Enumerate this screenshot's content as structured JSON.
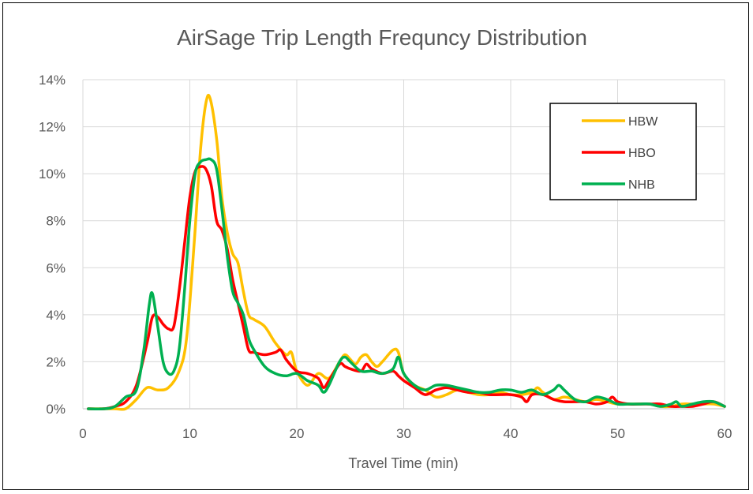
{
  "chart_data": {
    "type": "line",
    "title": "AirSage Trip Length Frequncy Distribution",
    "xlabel": "Travel Time (min)",
    "ylabel": "",
    "xlim": [
      0,
      60
    ],
    "ylim": [
      0,
      14
    ],
    "x_ticks": [
      "0",
      "10",
      "20",
      "30",
      "40",
      "50",
      "60"
    ],
    "y_ticks": [
      "0%",
      "2%",
      "4%",
      "6%",
      "8%",
      "10%",
      "12%",
      "14%"
    ],
    "grid": true,
    "legend_position": "top-right",
    "series": [
      {
        "name": "HBW",
        "color": "#FFC000",
        "points": [
          [
            0.5,
            0
          ],
          [
            2,
            0
          ],
          [
            3,
            0
          ],
          [
            4,
            0
          ],
          [
            5,
            0.4
          ],
          [
            6,
            0.9
          ],
          [
            7,
            0.8
          ],
          [
            8,
            0.9
          ],
          [
            9,
            1.6
          ],
          [
            9.7,
            3
          ],
          [
            10.4,
            7
          ],
          [
            11,
            11
          ],
          [
            11.5,
            13
          ],
          [
            11.9,
            13.2
          ],
          [
            12.5,
            11.5
          ],
          [
            13,
            9
          ],
          [
            13.5,
            7.5
          ],
          [
            14,
            6.6
          ],
          [
            14.5,
            6.2
          ],
          [
            15,
            5
          ],
          [
            15.5,
            4
          ],
          [
            16,
            3.8
          ],
          [
            17,
            3.5
          ],
          [
            18,
            2.8
          ],
          [
            19,
            2.3
          ],
          [
            19.5,
            2.4
          ],
          [
            20,
            1.6
          ],
          [
            21,
            1
          ],
          [
            22,
            1.5
          ],
          [
            23,
            1.3
          ],
          [
            24,
            2
          ],
          [
            24.5,
            2.3
          ],
          [
            25,
            2.1
          ],
          [
            25.5,
            1.9
          ],
          [
            26,
            2.2
          ],
          [
            26.5,
            2.3
          ],
          [
            27,
            2
          ],
          [
            27.5,
            1.8
          ],
          [
            28,
            2
          ],
          [
            29,
            2.5
          ],
          [
            29.5,
            2.4
          ],
          [
            30,
            1.5
          ],
          [
            31,
            1
          ],
          [
            32,
            0.8
          ],
          [
            33,
            0.5
          ],
          [
            34,
            0.6
          ],
          [
            35,
            0.8
          ],
          [
            36,
            0.7
          ],
          [
            37,
            0.6
          ],
          [
            38,
            0.6
          ],
          [
            39,
            0.7
          ],
          [
            40,
            0.6
          ],
          [
            41,
            0.6
          ],
          [
            42,
            0.7
          ],
          [
            42.5,
            0.9
          ],
          [
            43,
            0.7
          ],
          [
            44,
            0.4
          ],
          [
            45,
            0.5
          ],
          [
            46,
            0.4
          ],
          [
            47,
            0.3
          ],
          [
            48,
            0.4
          ],
          [
            49,
            0.3
          ],
          [
            50,
            0.2
          ],
          [
            51,
            0.2
          ],
          [
            52,
            0.2
          ],
          [
            53,
            0.2
          ],
          [
            54,
            0.1
          ],
          [
            55,
            0.1
          ],
          [
            56,
            0.2
          ],
          [
            57,
            0.2
          ],
          [
            58,
            0.2
          ],
          [
            59,
            0.2
          ],
          [
            60,
            0.1
          ]
        ]
      },
      {
        "name": "HBO",
        "color": "#FF0000",
        "points": [
          [
            0.5,
            0
          ],
          [
            2,
            0
          ],
          [
            3,
            0.1
          ],
          [
            4,
            0.3
          ],
          [
            5,
            1
          ],
          [
            6,
            2.8
          ],
          [
            6.5,
            3.9
          ],
          [
            7,
            3.9
          ],
          [
            7.5,
            3.6
          ],
          [
            8,
            3.4
          ],
          [
            8.5,
            3.5
          ],
          [
            9,
            5
          ],
          [
            9.5,
            7
          ],
          [
            10,
            9
          ],
          [
            10.5,
            10.1
          ],
          [
            11,
            10.3
          ],
          [
            11.5,
            10.2
          ],
          [
            12,
            9.5
          ],
          [
            12.5,
            8
          ],
          [
            13,
            7.6
          ],
          [
            13.5,
            6.8
          ],
          [
            14,
            5.5
          ],
          [
            14.5,
            4.5
          ],
          [
            15,
            3.5
          ],
          [
            15.5,
            2.5
          ],
          [
            16,
            2.4
          ],
          [
            17,
            2.3
          ],
          [
            18,
            2.4
          ],
          [
            18.5,
            2.5
          ],
          [
            19,
            2.1
          ],
          [
            20,
            1.6
          ],
          [
            21,
            1.5
          ],
          [
            22,
            1.3
          ],
          [
            22.5,
            0.9
          ],
          [
            23,
            1.2
          ],
          [
            24,
            1.9
          ],
          [
            24.5,
            1.8
          ],
          [
            25,
            1.7
          ],
          [
            26,
            1.6
          ],
          [
            26.5,
            1.9
          ],
          [
            27,
            1.7
          ],
          [
            28,
            1.5
          ],
          [
            29,
            1.6
          ],
          [
            29.5,
            1.4
          ],
          [
            30,
            1.2
          ],
          [
            31,
            0.9
          ],
          [
            32,
            0.6
          ],
          [
            33,
            0.8
          ],
          [
            34,
            0.9
          ],
          [
            35,
            0.8
          ],
          [
            36,
            0.7
          ],
          [
            37,
            0.7
          ],
          [
            38,
            0.6
          ],
          [
            39,
            0.6
          ],
          [
            40,
            0.6
          ],
          [
            41,
            0.5
          ],
          [
            41.5,
            0.3
          ],
          [
            42,
            0.6
          ],
          [
            43,
            0.6
          ],
          [
            44,
            0.4
          ],
          [
            45,
            0.3
          ],
          [
            46,
            0.3
          ],
          [
            47,
            0.3
          ],
          [
            48,
            0.2
          ],
          [
            49,
            0.3
          ],
          [
            49.5,
            0.5
          ],
          [
            50,
            0.3
          ],
          [
            51,
            0.2
          ],
          [
            52,
            0.2
          ],
          [
            53,
            0.2
          ],
          [
            54,
            0.2
          ],
          [
            55,
            0.1
          ],
          [
            56,
            0.1
          ],
          [
            57,
            0.1
          ],
          [
            58,
            0.2
          ],
          [
            59,
            0.3
          ],
          [
            60,
            0.1
          ]
        ]
      },
      {
        "name": "NHB",
        "color": "#00B050",
        "points": [
          [
            0.5,
            0
          ],
          [
            2,
            0
          ],
          [
            3,
            0.1
          ],
          [
            4,
            0.5
          ],
          [
            5,
            0.8
          ],
          [
            5.7,
            2.5
          ],
          [
            6.2,
            4.4
          ],
          [
            6.5,
            4.9
          ],
          [
            7,
            3.5
          ],
          [
            7.5,
            2
          ],
          [
            8,
            1.5
          ],
          [
            8.5,
            1.6
          ],
          [
            9,
            2.5
          ],
          [
            9.5,
            5
          ],
          [
            10,
            8
          ],
          [
            10.5,
            10
          ],
          [
            11,
            10.5
          ],
          [
            11.5,
            10.6
          ],
          [
            12,
            10.6
          ],
          [
            12.5,
            10.2
          ],
          [
            13,
            8.5
          ],
          [
            13.5,
            6.5
          ],
          [
            14,
            5
          ],
          [
            14.5,
            4.5
          ],
          [
            15,
            4
          ],
          [
            15.5,
            3
          ],
          [
            16,
            2.5
          ],
          [
            17,
            1.8
          ],
          [
            18,
            1.5
          ],
          [
            19,
            1.4
          ],
          [
            20,
            1.5
          ],
          [
            21,
            1.2
          ],
          [
            22,
            1
          ],
          [
            22.5,
            0.7
          ],
          [
            23,
            1
          ],
          [
            24,
            2
          ],
          [
            24.5,
            2.2
          ],
          [
            25,
            2
          ],
          [
            26,
            1.6
          ],
          [
            27,
            1.6
          ],
          [
            28,
            1.5
          ],
          [
            29,
            1.7
          ],
          [
            29.5,
            2.2
          ],
          [
            30,
            1.5
          ],
          [
            31,
            1
          ],
          [
            32,
            0.8
          ],
          [
            33,
            1
          ],
          [
            34,
            1
          ],
          [
            35,
            0.9
          ],
          [
            36,
            0.8
          ],
          [
            37,
            0.7
          ],
          [
            38,
            0.7
          ],
          [
            39,
            0.8
          ],
          [
            40,
            0.8
          ],
          [
            41,
            0.7
          ],
          [
            42,
            0.8
          ],
          [
            43,
            0.6
          ],
          [
            44,
            0.8
          ],
          [
            44.5,
            1
          ],
          [
            45,
            0.8
          ],
          [
            46,
            0.4
          ],
          [
            47,
            0.3
          ],
          [
            48,
            0.5
          ],
          [
            49,
            0.4
          ],
          [
            50,
            0.2
          ],
          [
            51,
            0.2
          ],
          [
            52,
            0.2
          ],
          [
            53,
            0.2
          ],
          [
            54,
            0.1
          ],
          [
            55,
            0.2
          ],
          [
            55.5,
            0.3
          ],
          [
            56,
            0.1
          ],
          [
            57,
            0.2
          ],
          [
            58,
            0.3
          ],
          [
            59,
            0.3
          ],
          [
            60,
            0.1
          ]
        ]
      }
    ]
  }
}
